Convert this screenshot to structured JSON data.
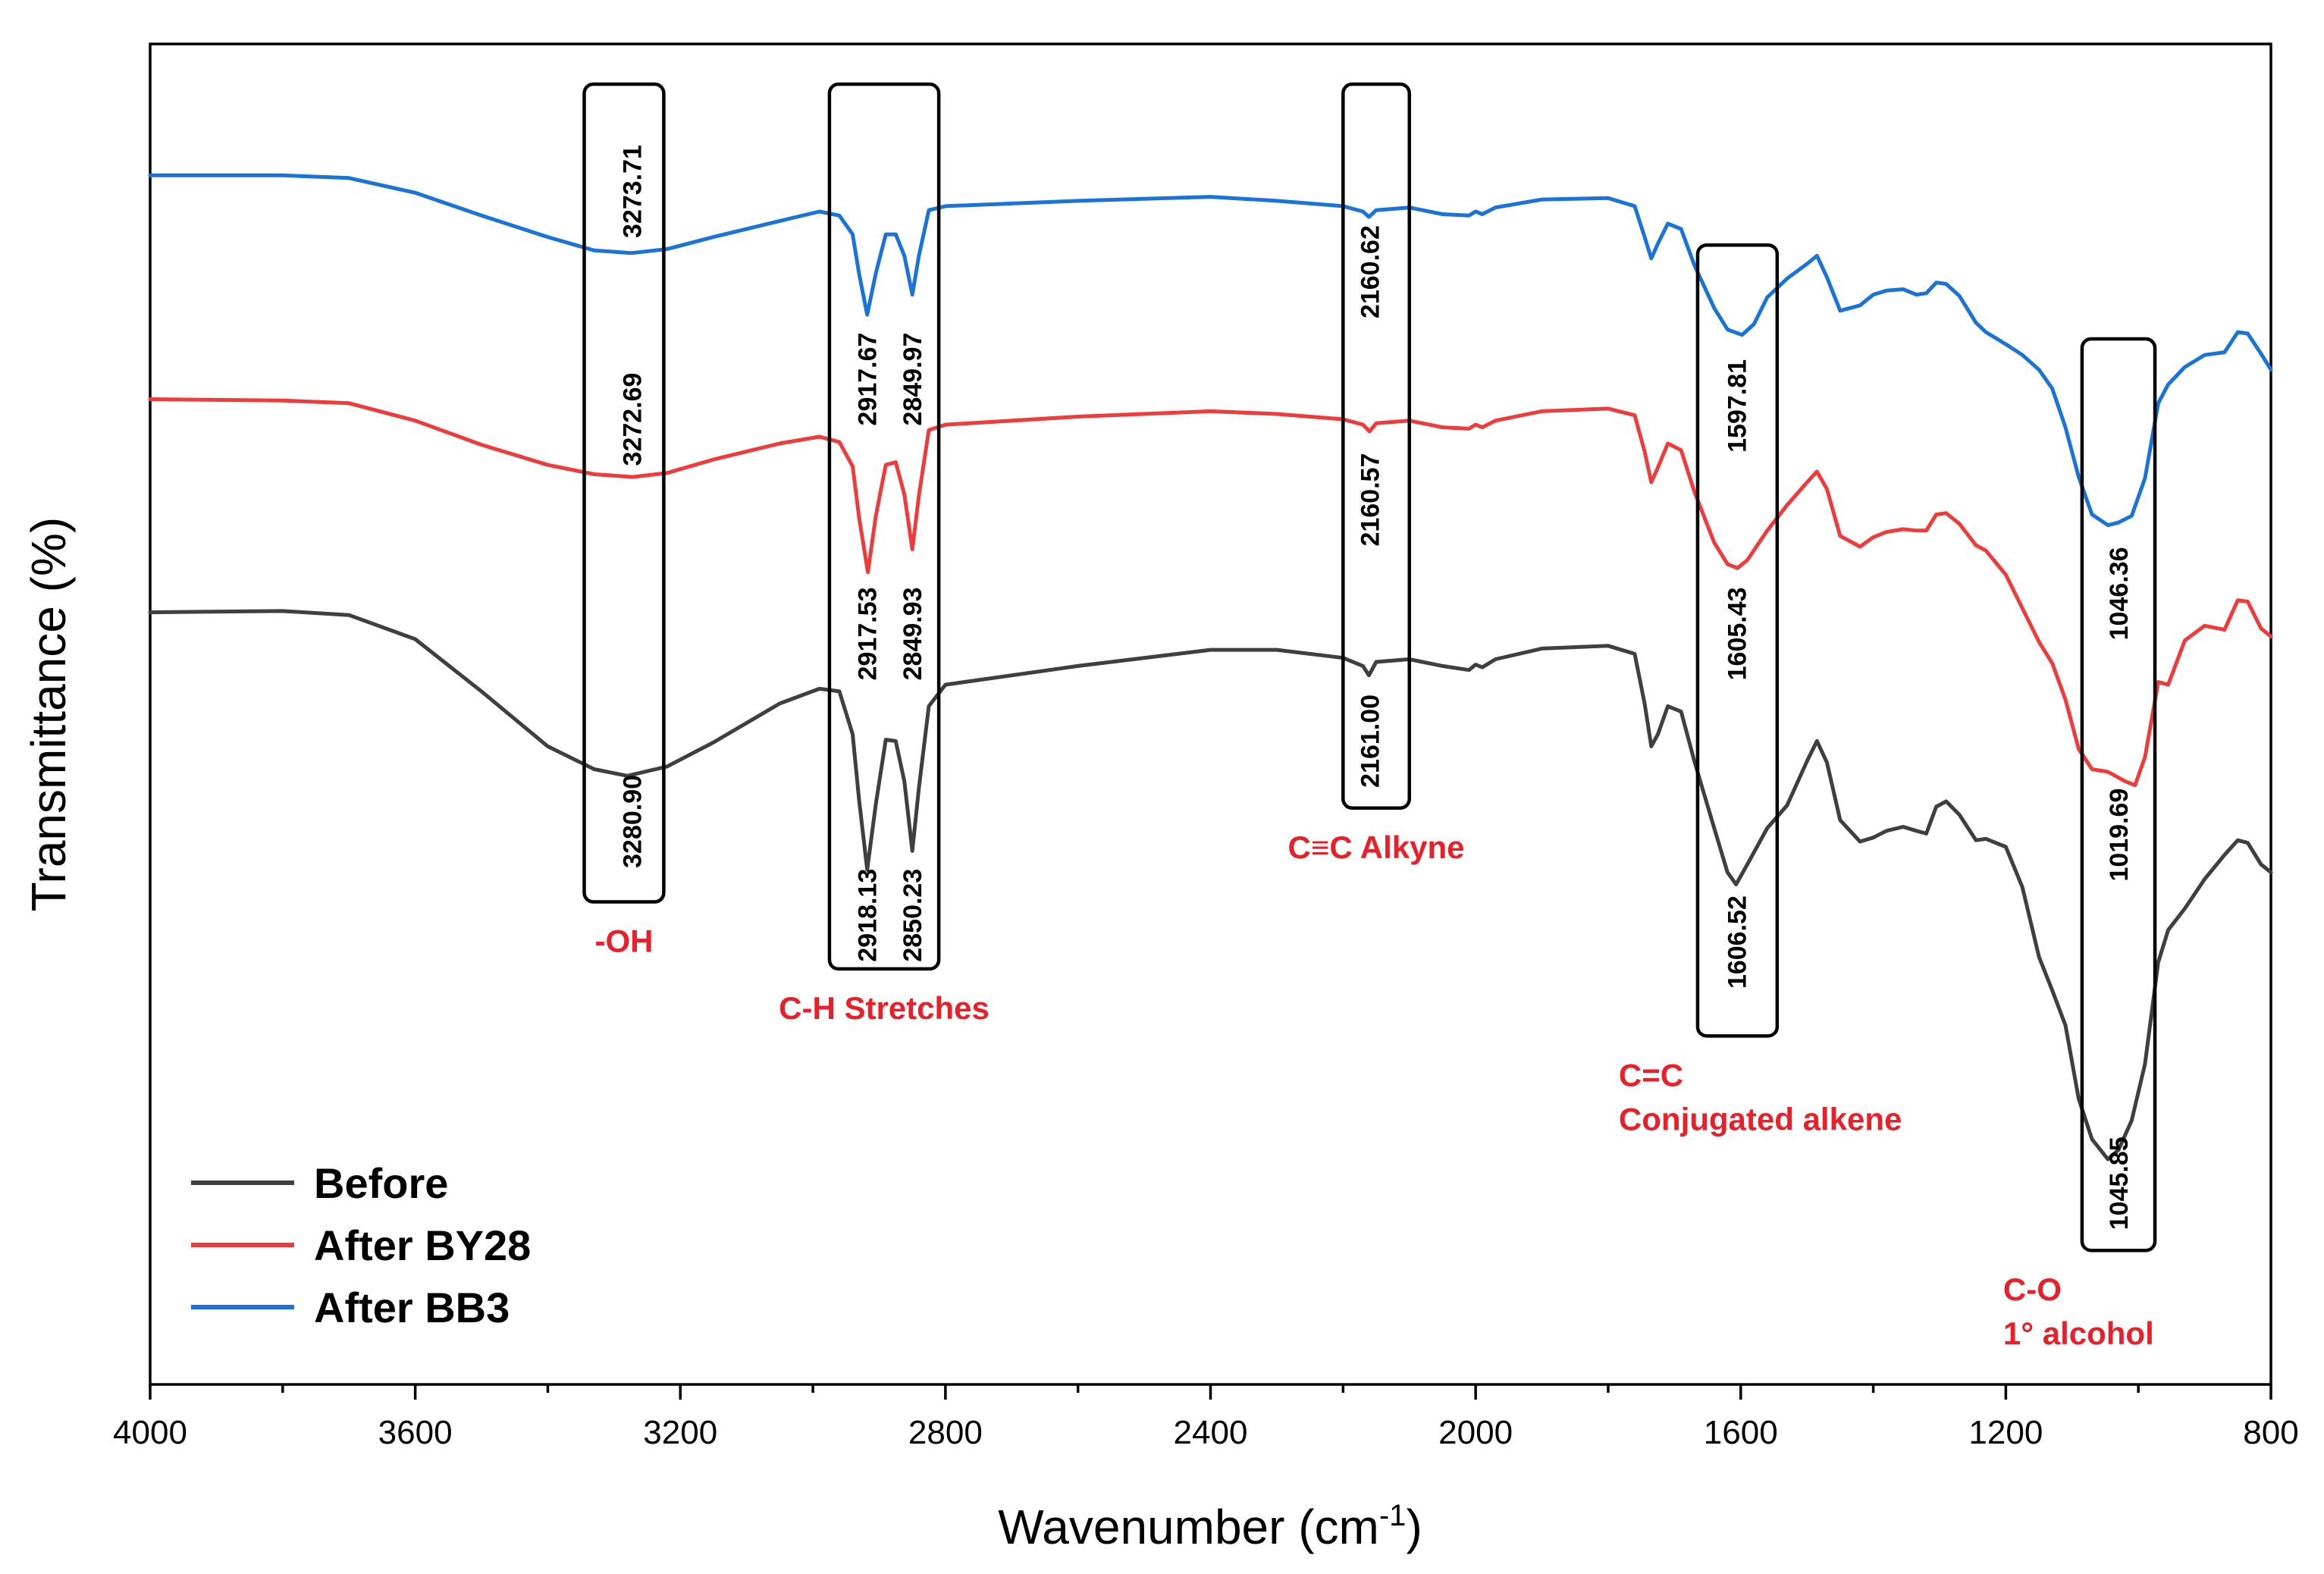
{
  "chart_data": {
    "type": "line",
    "title": "",
    "xlabel": "Wavenumber (cm",
    "xlabel_sup": "-1",
    "xlabel_end": ")",
    "ylabel": "Transmittance (%)",
    "xlim": [
      4000,
      800
    ],
    "x_reversed": true,
    "ylim": [
      0,
      100
    ],
    "y_ticks_shown": false,
    "x_ticks": [
      4000,
      3600,
      3200,
      2800,
      2400,
      2000,
      1600,
      1200,
      800
    ],
    "x_tick_labels": [
      "4000",
      "3600",
      "3200",
      "2800",
      "2400",
      "2000",
      "1600",
      "1200",
      "800"
    ],
    "legend_position": "bottom-left",
    "series": [
      {
        "name": "Before",
        "color": "#3f3f3f",
        "points": [
          [
            4000,
            57.6
          ],
          [
            3800,
            57.7
          ],
          [
            3700,
            57.4
          ],
          [
            3600,
            55.6
          ],
          [
            3500,
            51.7
          ],
          [
            3400,
            47.6
          ],
          [
            3330,
            45.9
          ],
          [
            3280,
            45.4
          ],
          [
            3220,
            46.1
          ],
          [
            3150,
            47.9
          ],
          [
            3050,
            50.8
          ],
          [
            2990,
            51.9
          ],
          [
            2960,
            51.7
          ],
          [
            2940,
            48.5
          ],
          [
            2930,
            43.5
          ],
          [
            2918,
            38.4
          ],
          [
            2905,
            43.3
          ],
          [
            2890,
            48.1
          ],
          [
            2875,
            48.0
          ],
          [
            2862,
            45.0
          ],
          [
            2850,
            39.8
          ],
          [
            2840,
            44.5
          ],
          [
            2825,
            50.6
          ],
          [
            2800,
            52.2
          ],
          [
            2600,
            53.6
          ],
          [
            2400,
            54.8
          ],
          [
            2300,
            54.8
          ],
          [
            2200,
            54.2
          ],
          [
            2170,
            53.6
          ],
          [
            2161,
            52.9
          ],
          [
            2150,
            53.9
          ],
          [
            2100,
            54.1
          ],
          [
            2050,
            53.6
          ],
          [
            2010,
            53.3
          ],
          [
            2000,
            53.7
          ],
          [
            1990,
            53.5
          ],
          [
            1970,
            54.1
          ],
          [
            1900,
            54.9
          ],
          [
            1800,
            55.1
          ],
          [
            1760,
            54.5
          ],
          [
            1745,
            50.8
          ],
          [
            1735,
            47.6
          ],
          [
            1725,
            48.5
          ],
          [
            1710,
            50.6
          ],
          [
            1690,
            50.2
          ],
          [
            1670,
            46.5
          ],
          [
            1640,
            41.5
          ],
          [
            1620,
            38.2
          ],
          [
            1607,
            37.3
          ],
          [
            1590,
            38.8
          ],
          [
            1560,
            41.5
          ],
          [
            1530,
            43.2
          ],
          [
            1500,
            46.5
          ],
          [
            1485,
            48.0
          ],
          [
            1470,
            46.4
          ],
          [
            1450,
            42.1
          ],
          [
            1420,
            40.5
          ],
          [
            1400,
            40.8
          ],
          [
            1380,
            41.3
          ],
          [
            1355,
            41.6
          ],
          [
            1335,
            41.3
          ],
          [
            1320,
            41.1
          ],
          [
            1305,
            43.1
          ],
          [
            1290,
            43.5
          ],
          [
            1270,
            42.5
          ],
          [
            1245,
            40.6
          ],
          [
            1230,
            40.7
          ],
          [
            1200,
            40.1
          ],
          [
            1175,
            37.1
          ],
          [
            1150,
            31.9
          ],
          [
            1130,
            29.4
          ],
          [
            1110,
            26.8
          ],
          [
            1090,
            21.3
          ],
          [
            1070,
            18.3
          ],
          [
            1046,
            16.8
          ],
          [
            1030,
            17.5
          ],
          [
            1010,
            19.7
          ],
          [
            990,
            23.9
          ],
          [
            970,
            31.5
          ],
          [
            955,
            33.9
          ],
          [
            930,
            35.5
          ],
          [
            900,
            37.7
          ],
          [
            870,
            39.5
          ],
          [
            850,
            40.6
          ],
          [
            835,
            40.4
          ],
          [
            815,
            38.8
          ],
          [
            800,
            38.2
          ]
        ]
      },
      {
        "name": "After BY28",
        "color": "#ee3b3b",
        "points": [
          [
            4000,
            73.5
          ],
          [
            3800,
            73.4
          ],
          [
            3700,
            73.2
          ],
          [
            3600,
            71.9
          ],
          [
            3500,
            70.1
          ],
          [
            3400,
            68.6
          ],
          [
            3330,
            67.9
          ],
          [
            3272,
            67.7
          ],
          [
            3220,
            68.0
          ],
          [
            3150,
            69.0
          ],
          [
            3050,
            70.2
          ],
          [
            2990,
            70.7
          ],
          [
            2960,
            70.3
          ],
          [
            2940,
            68.5
          ],
          [
            2930,
            64.6
          ],
          [
            2917,
            60.6
          ],
          [
            2905,
            64.8
          ],
          [
            2890,
            68.6
          ],
          [
            2875,
            68.8
          ],
          [
            2862,
            66.4
          ],
          [
            2850,
            62.3
          ],
          [
            2840,
            66.3
          ],
          [
            2825,
            71.2
          ],
          [
            2800,
            71.6
          ],
          [
            2600,
            72.2
          ],
          [
            2400,
            72.6
          ],
          [
            2300,
            72.4
          ],
          [
            2200,
            72.0
          ],
          [
            2170,
            71.6
          ],
          [
            2160,
            71.1
          ],
          [
            2150,
            71.7
          ],
          [
            2100,
            71.9
          ],
          [
            2050,
            71.4
          ],
          [
            2010,
            71.3
          ],
          [
            2000,
            71.6
          ],
          [
            1990,
            71.4
          ],
          [
            1970,
            71.9
          ],
          [
            1900,
            72.6
          ],
          [
            1800,
            72.8
          ],
          [
            1760,
            72.3
          ],
          [
            1745,
            69.6
          ],
          [
            1735,
            67.3
          ],
          [
            1725,
            68.4
          ],
          [
            1710,
            70.2
          ],
          [
            1690,
            69.7
          ],
          [
            1670,
            66.6
          ],
          [
            1640,
            62.8
          ],
          [
            1620,
            61.2
          ],
          [
            1605,
            60.9
          ],
          [
            1590,
            61.5
          ],
          [
            1560,
            63.7
          ],
          [
            1530,
            65.6
          ],
          [
            1500,
            67.3
          ],
          [
            1485,
            68.1
          ],
          [
            1470,
            66.8
          ],
          [
            1450,
            63.3
          ],
          [
            1420,
            62.5
          ],
          [
            1400,
            63.2
          ],
          [
            1380,
            63.6
          ],
          [
            1355,
            63.8
          ],
          [
            1335,
            63.7
          ],
          [
            1320,
            63.7
          ],
          [
            1305,
            64.9
          ],
          [
            1290,
            65.0
          ],
          [
            1270,
            64.2
          ],
          [
            1245,
            62.6
          ],
          [
            1230,
            62.2
          ],
          [
            1200,
            60.4
          ],
          [
            1175,
            57.9
          ],
          [
            1150,
            55.4
          ],
          [
            1130,
            53.8
          ],
          [
            1110,
            51.1
          ],
          [
            1090,
            47.4
          ],
          [
            1070,
            45.9
          ],
          [
            1046,
            45.7
          ],
          [
            1020,
            45.0
          ],
          [
            1005,
            44.7
          ],
          [
            990,
            46.8
          ],
          [
            970,
            52.4
          ],
          [
            955,
            52.2
          ],
          [
            930,
            55.5
          ],
          [
            900,
            56.6
          ],
          [
            870,
            56.3
          ],
          [
            850,
            58.5
          ],
          [
            835,
            58.4
          ],
          [
            815,
            56.4
          ],
          [
            800,
            55.8
          ]
        ]
      },
      {
        "name": "After BB3",
        "color": "#1a73d9",
        "points": [
          [
            4000,
            90.2
          ],
          [
            3800,
            90.2
          ],
          [
            3700,
            90.0
          ],
          [
            3600,
            88.9
          ],
          [
            3500,
            87.2
          ],
          [
            3400,
            85.6
          ],
          [
            3330,
            84.6
          ],
          [
            3274,
            84.4
          ],
          [
            3220,
            84.7
          ],
          [
            3150,
            85.6
          ],
          [
            3050,
            86.8
          ],
          [
            2990,
            87.5
          ],
          [
            2960,
            87.2
          ],
          [
            2940,
            85.8
          ],
          [
            2930,
            82.8
          ],
          [
            2918,
            79.8
          ],
          [
            2905,
            82.9
          ],
          [
            2890,
            85.8
          ],
          [
            2875,
            85.8
          ],
          [
            2862,
            84.2
          ],
          [
            2850,
            81.3
          ],
          [
            2840,
            84.2
          ],
          [
            2825,
            87.6
          ],
          [
            2800,
            87.9
          ],
          [
            2600,
            88.3
          ],
          [
            2400,
            88.6
          ],
          [
            2300,
            88.3
          ],
          [
            2200,
            87.9
          ],
          [
            2170,
            87.5
          ],
          [
            2161,
            87.1
          ],
          [
            2150,
            87.6
          ],
          [
            2100,
            87.8
          ],
          [
            2050,
            87.3
          ],
          [
            2010,
            87.2
          ],
          [
            2000,
            87.5
          ],
          [
            1990,
            87.3
          ],
          [
            1970,
            87.8
          ],
          [
            1900,
            88.4
          ],
          [
            1800,
            88.5
          ],
          [
            1760,
            87.9
          ],
          [
            1745,
            85.6
          ],
          [
            1735,
            84.0
          ],
          [
            1725,
            85.1
          ],
          [
            1710,
            86.6
          ],
          [
            1690,
            86.2
          ],
          [
            1670,
            83.5
          ],
          [
            1640,
            80.3
          ],
          [
            1620,
            78.7
          ],
          [
            1598,
            78.3
          ],
          [
            1580,
            79.1
          ],
          [
            1560,
            81.1
          ],
          [
            1530,
            82.5
          ],
          [
            1500,
            83.6
          ],
          [
            1485,
            84.2
          ],
          [
            1470,
            82.6
          ],
          [
            1450,
            80.1
          ],
          [
            1420,
            80.5
          ],
          [
            1400,
            81.3
          ],
          [
            1380,
            81.6
          ],
          [
            1355,
            81.7
          ],
          [
            1335,
            81.3
          ],
          [
            1320,
            81.4
          ],
          [
            1305,
            82.2
          ],
          [
            1290,
            82.1
          ],
          [
            1270,
            81.2
          ],
          [
            1245,
            79.2
          ],
          [
            1230,
            78.5
          ],
          [
            1200,
            77.6
          ],
          [
            1175,
            76.8
          ],
          [
            1150,
            75.7
          ],
          [
            1130,
            74.3
          ],
          [
            1110,
            71.4
          ],
          [
            1090,
            67.7
          ],
          [
            1070,
            64.9
          ],
          [
            1046,
            64.1
          ],
          [
            1030,
            64.3
          ],
          [
            1010,
            64.8
          ],
          [
            990,
            67.6
          ],
          [
            970,
            73.2
          ],
          [
            955,
            74.6
          ],
          [
            930,
            75.9
          ],
          [
            900,
            76.8
          ],
          [
            870,
            77.0
          ],
          [
            850,
            78.5
          ],
          [
            835,
            78.4
          ],
          [
            815,
            76.9
          ],
          [
            800,
            75.7
          ]
        ]
      }
    ],
    "annotation_groups": [
      {
        "label": [
          "-OH"
        ],
        "color": "#e8202a",
        "x_range": [
          3345,
          3225
        ],
        "box_y": [
          97,
          36
        ],
        "peaks": [
          {
            "text": "3273.71",
            "x": 3273,
            "y": 89
          },
          {
            "text": "3272.69",
            "x": 3273,
            "y": 72
          },
          {
            "text": "3280.90",
            "x": 3273,
            "y": 42
          }
        ]
      },
      {
        "label": [
          "C-H Stretches"
        ],
        "color": "#e8202a",
        "x_range": [
          2975,
          2810
        ],
        "box_y": [
          97,
          31
        ],
        "peaks": [
          {
            "text": "2917.67",
            "x": 2918,
            "y": 75
          },
          {
            "text": "2849.97",
            "x": 2850,
            "y": 75
          },
          {
            "text": "2917.53",
            "x": 2918,
            "y": 56
          },
          {
            "text": "2849.93",
            "x": 2850,
            "y": 56
          },
          {
            "text": "2918.13",
            "x": 2918,
            "y": 35
          },
          {
            "text": "2850.23",
            "x": 2850,
            "y": 35
          }
        ]
      },
      {
        "label": [
          "C≡C Alkyne"
        ],
        "color": "#e8202a",
        "x_range": [
          2200,
          2100
        ],
        "box_y": [
          97,
          43
        ],
        "peaks": [
          {
            "text": "2160.62",
            "x": 2160,
            "y": 83
          },
          {
            "text": "2160.57",
            "x": 2160,
            "y": 66
          },
          {
            "text": "2161.00",
            "x": 2160,
            "y": 48
          }
        ]
      },
      {
        "label": [
          "C=C",
          "Conjugated alkene"
        ],
        "color": "#e8202a",
        "x_range": [
          1665,
          1545
        ],
        "box_y": [
          85,
          26
        ],
        "peaks": [
          {
            "text": "1597.81",
            "x": 1606,
            "y": 73
          },
          {
            "text": "1605.43",
            "x": 1606,
            "y": 56
          },
          {
            "text": "1606.52",
            "x": 1606,
            "y": 33
          }
        ]
      },
      {
        "label": [
          "C-O",
          "1° alcohol"
        ],
        "color": "#e8202a",
        "x_range": [
          1085,
          975
        ],
        "box_y": [
          78,
          10
        ],
        "peaks": [
          {
            "text": "1046.36",
            "x": 1030,
            "y": 59
          },
          {
            "text": "1019.69",
            "x": 1030,
            "y": 41
          },
          {
            "text": "1045.85",
            "x": 1030,
            "y": 15
          }
        ]
      }
    ]
  }
}
